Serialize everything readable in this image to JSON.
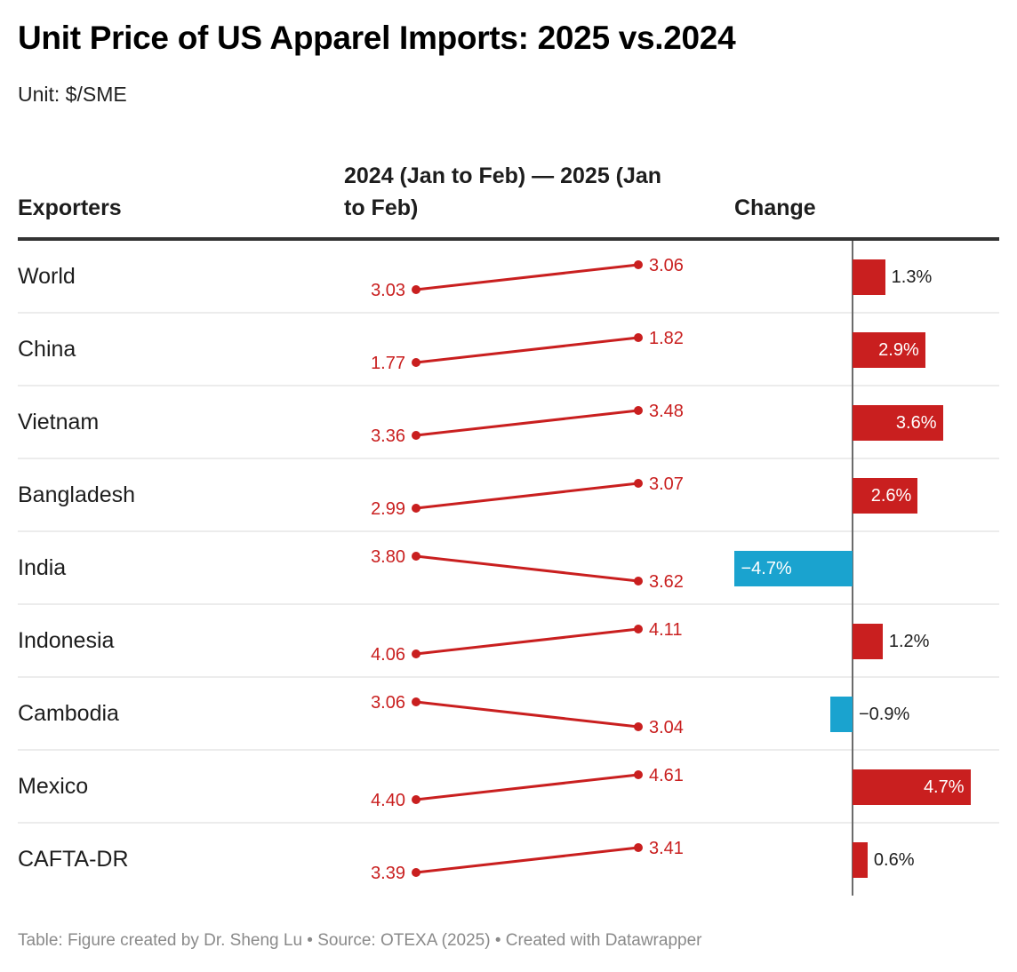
{
  "header": {
    "title": "Unit Price of US Apparel Imports: 2025 vs.2024",
    "subtitle": "Unit: $/SME"
  },
  "table": {
    "columns": [
      "Exporters",
      "2024 (Jan to Feb) — 2025 (Jan to Feb)",
      "Change"
    ]
  },
  "footer": {
    "text": "Table: Figure created by Dr. Sheng Lu • Source: OTEXA (2025) • Created with Datawrapper"
  },
  "colors": {
    "slope_line": "#c91f1f",
    "positive_bar": "#c91f1f",
    "negative_bar": "#1aa3cf",
    "axis": "#6b6b6b"
  },
  "chart_data": {
    "type": "table",
    "title": "Unit Price of US Apparel Imports: 2025 vs.2024",
    "subtitle": "Unit: $/SME",
    "unit": "$/SME",
    "columns": [
      "Exporters",
      "2024 (Jan to Feb) — 2025 (Jan to Feb)",
      "Change"
    ],
    "change_range_pct": [
      -4.7,
      4.7
    ],
    "rows": [
      {
        "exporter": "World",
        "v2024": 3.03,
        "v2025": 3.06,
        "v2024_label": "3.03",
        "v2025_label": "3.06",
        "change": 1.3,
        "change_label": "1.3%"
      },
      {
        "exporter": "China",
        "v2024": 1.77,
        "v2025": 1.82,
        "v2024_label": "1.77",
        "v2025_label": "1.82",
        "change": 2.9,
        "change_label": "2.9%"
      },
      {
        "exporter": "Vietnam",
        "v2024": 3.36,
        "v2025": 3.48,
        "v2024_label": "3.36",
        "v2025_label": "3.48",
        "change": 3.6,
        "change_label": "3.6%"
      },
      {
        "exporter": "Bangladesh",
        "v2024": 2.99,
        "v2025": 3.07,
        "v2024_label": "2.99",
        "v2025_label": "3.07",
        "change": 2.6,
        "change_label": "2.6%"
      },
      {
        "exporter": "India",
        "v2024": 3.8,
        "v2025": 3.62,
        "v2024_label": "3.80",
        "v2025_label": "3.62",
        "change": -4.7,
        "change_label": "−4.7%"
      },
      {
        "exporter": "Indonesia",
        "v2024": 4.06,
        "v2025": 4.11,
        "v2024_label": "4.06",
        "v2025_label": "4.11",
        "change": 1.2,
        "change_label": "1.2%"
      },
      {
        "exporter": "Cambodia",
        "v2024": 3.06,
        "v2025": 3.04,
        "v2024_label": "3.06",
        "v2025_label": "3.04",
        "change": -0.9,
        "change_label": "−0.9%"
      },
      {
        "exporter": "Mexico",
        "v2024": 4.4,
        "v2025": 4.61,
        "v2024_label": "4.40",
        "v2025_label": "4.61",
        "change": 4.7,
        "change_label": "4.7%"
      },
      {
        "exporter": "CAFTA-DR",
        "v2024": 3.39,
        "v2025": 3.41,
        "v2024_label": "3.39",
        "v2025_label": "3.41",
        "change": 0.6,
        "change_label": "0.6%"
      }
    ]
  }
}
